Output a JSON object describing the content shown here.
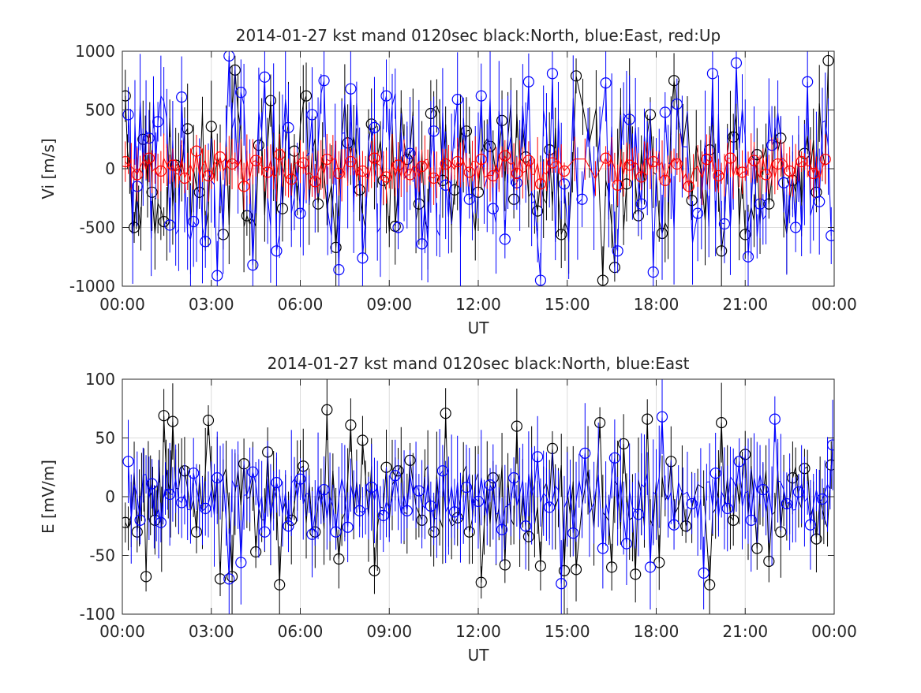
{
  "chart_data": [
    {
      "type": "line",
      "title": "2014-01-27 kst mand 0120sec black:North, blue:East, red:Up",
      "xlabel": "UT",
      "ylabel": "Vi [m/s]",
      "xlim": [
        0,
        24
      ],
      "ylim": [
        -1000,
        1000
      ],
      "xticks": [
        0,
        3,
        6,
        9,
        12,
        15,
        18,
        21,
        24
      ],
      "xtick_labels": [
        "00:00",
        "03:00",
        "06:00",
        "09:00",
        "12:00",
        "15:00",
        "18:00",
        "21:00",
        "00:00"
      ],
      "yticks": [
        -1000,
        -500,
        0,
        500,
        1000
      ],
      "ytick_labels": [
        "-1000",
        "-500",
        "0",
        "500",
        "1000"
      ],
      "grid": true,
      "markers": "circle",
      "series": [
        {
          "name": "North",
          "color": "#000000",
          "spread": 700,
          "errorbar": 300,
          "x": [
            0.1,
            0.4,
            0.7,
            1.0,
            1.4,
            1.8,
            2.2,
            2.6,
            3.0,
            3.4,
            3.8,
            4.2,
            4.6,
            5.0,
            5.4,
            5.8,
            6.2,
            6.6,
            7.2,
            7.6,
            8.0,
            8.4,
            8.8,
            9.2,
            9.6,
            10.0,
            10.4,
            10.8,
            11.2,
            11.6,
            12.0,
            12.4,
            12.8,
            13.2,
            13.6,
            14.0,
            14.4,
            14.8,
            15.3,
            16.2,
            16.6,
            17.0,
            17.4,
            17.8,
            18.2,
            18.6,
            19.2,
            19.8,
            20.2,
            20.6,
            21.0,
            21.4,
            21.8,
            22.2,
            22.6,
            23.0,
            23.4,
            23.8
          ],
          "y": [
            620,
            -500,
            250,
            -200,
            -450,
            30,
            340,
            -200,
            360,
            -560,
            840,
            -400,
            200,
            580,
            -340,
            150,
            620,
            -300,
            -670,
            220,
            -180,
            380,
            -100,
            -490,
            80,
            -300,
            470,
            -100,
            -180,
            320,
            -200,
            190,
            410,
            -260,
            100,
            -360,
            160,
            -560,
            790,
            -950,
            -840,
            -130,
            -400,
            460,
            -550,
            750,
            -270,
            160,
            -700,
            270,
            -560,
            120,
            -300,
            260,
            -100,
            130,
            -200,
            920
          ]
        },
        {
          "name": "East",
          "color": "#0000ff",
          "spread": 800,
          "errorbar": 380,
          "x": [
            0.2,
            0.5,
            0.9,
            1.2,
            1.6,
            2.0,
            2.4,
            2.8,
            3.2,
            3.6,
            4.0,
            4.4,
            4.8,
            5.2,
            5.6,
            6.0,
            6.4,
            6.8,
            7.3,
            7.7,
            8.1,
            8.5,
            8.9,
            9.3,
            9.7,
            10.1,
            10.5,
            10.9,
            11.3,
            11.7,
            12.1,
            12.5,
            12.9,
            13.3,
            13.7,
            14.1,
            14.5,
            14.9,
            15.5,
            16.3,
            16.7,
            17.1,
            17.5,
            17.9,
            18.3,
            18.7,
            19.4,
            19.9,
            20.3,
            20.7,
            21.1,
            21.5,
            21.9,
            22.3,
            22.7,
            23.1,
            23.5,
            23.9
          ],
          "y": [
            460,
            -150,
            260,
            400,
            -480,
            610,
            -450,
            -620,
            -910,
            960,
            650,
            -820,
            780,
            -700,
            350,
            -380,
            460,
            750,
            -860,
            680,
            -760,
            350,
            620,
            -500,
            130,
            -640,
            320,
            -140,
            590,
            -260,
            620,
            -340,
            -600,
            -120,
            740,
            -950,
            810,
            -130,
            -260,
            730,
            -700,
            420,
            -300,
            -880,
            480,
            550,
            -380,
            810,
            -470,
            900,
            -750,
            -300,
            200,
            -120,
            -500,
            740,
            -280,
            -570
          ]
        },
        {
          "name": "Up",
          "color": "#ff0000",
          "spread": 120,
          "errorbar": 180,
          "x": [
            0.1,
            0.5,
            0.9,
            1.3,
            1.7,
            2.1,
            2.5,
            2.9,
            3.3,
            3.7,
            4.1,
            4.5,
            4.9,
            5.3,
            5.7,
            6.1,
            6.5,
            6.9,
            7.3,
            7.7,
            8.1,
            8.5,
            8.9,
            9.3,
            9.7,
            10.1,
            10.5,
            10.9,
            11.3,
            11.7,
            12.1,
            12.5,
            12.9,
            13.3,
            13.7,
            14.1,
            14.5,
            14.9,
            16.3,
            16.7,
            17.1,
            17.5,
            17.9,
            18.3,
            18.7,
            19.1,
            19.7,
            20.1,
            20.5,
            20.9,
            21.3,
            21.7,
            22.1,
            22.5,
            22.9,
            23.3,
            23.7
          ],
          "y": [
            60,
            -50,
            90,
            -20,
            30,
            -80,
            150,
            -60,
            100,
            40,
            -150,
            70,
            -30,
            120,
            -90,
            50,
            -110,
            80,
            -40,
            60,
            -20,
            90,
            -70,
            30,
            -50,
            20,
            -80,
            40,
            60,
            -30,
            80,
            -60,
            110,
            -40,
            70,
            -130,
            50,
            -20,
            90,
            -140,
            30,
            -70,
            60,
            -100,
            40,
            -150,
            80,
            -60,
            90,
            -30,
            70,
            -50,
            40,
            -20,
            60,
            -40,
            80
          ]
        }
      ]
    },
    {
      "type": "line",
      "title": "2014-01-27 kst mand 0120sec black:North, blue:East",
      "xlabel": "UT",
      "ylabel": "E [mV/m]",
      "xlim": [
        0,
        24
      ],
      "ylim": [
        -100,
        100
      ],
      "xticks": [
        0,
        3,
        6,
        9,
        12,
        15,
        18,
        21,
        24
      ],
      "xtick_labels": [
        "00:00",
        "03:00",
        "06:00",
        "09:00",
        "12:00",
        "15:00",
        "18:00",
        "21:00",
        "00:00"
      ],
      "yticks": [
        -100,
        -50,
        0,
        50,
        100
      ],
      "ytick_labels": [
        "-100",
        "-50",
        "0",
        "50",
        "100"
      ],
      "grid": true,
      "markers": "circle",
      "series": [
        {
          "name": "North",
          "color": "#000000",
          "spread": 35,
          "errorbar": 30,
          "x": [
            0.1,
            0.5,
            0.8,
            1.1,
            1.4,
            1.7,
            2.1,
            2.5,
            2.9,
            3.3,
            3.7,
            4.1,
            4.5,
            4.9,
            5.3,
            5.7,
            6.1,
            6.5,
            6.9,
            7.3,
            7.7,
            8.1,
            8.5,
            8.9,
            9.3,
            9.7,
            10.1,
            10.5,
            10.9,
            11.3,
            11.7,
            12.1,
            12.5,
            12.9,
            13.3,
            13.7,
            14.1,
            14.5,
            14.9,
            15.3,
            16.1,
            16.5,
            16.9,
            17.3,
            17.7,
            18.1,
            18.5,
            19.0,
            19.8,
            20.2,
            20.6,
            21.0,
            21.4,
            21.8,
            22.2,
            22.6,
            23.0,
            23.4,
            23.9
          ],
          "y": [
            -22,
            -30,
            -68,
            -20,
            69,
            64,
            22,
            -30,
            65,
            -70,
            -68,
            28,
            -47,
            38,
            -75,
            -20,
            26,
            -30,
            74,
            -53,
            61,
            48,
            -63,
            25,
            22,
            31,
            -20,
            -30,
            71,
            -18,
            -30,
            -73,
            16,
            -58,
            60,
            -34,
            -59,
            41,
            -63,
            -62,
            63,
            -60,
            45,
            -66,
            66,
            -56,
            30,
            -25,
            -75,
            63,
            -20,
            36,
            -44,
            -55,
            -30,
            16,
            24,
            -36,
            27
          ]
        },
        {
          "name": "East",
          "color": "#0000ff",
          "spread": 25,
          "errorbar": 35,
          "x": [
            0.2,
            0.6,
            1.0,
            1.3,
            1.6,
            2.0,
            2.4,
            2.8,
            3.2,
            3.6,
            4.0,
            4.4,
            4.8,
            5.2,
            5.6,
            6.0,
            6.4,
            6.8,
            7.2,
            7.6,
            8.0,
            8.4,
            8.8,
            9.2,
            9.6,
            10.0,
            10.4,
            10.8,
            11.2,
            11.6,
            12.0,
            12.4,
            12.8,
            13.2,
            13.6,
            14.0,
            14.4,
            14.8,
            15.2,
            15.6,
            16.2,
            16.6,
            17.0,
            17.4,
            17.8,
            18.2,
            18.6,
            19.2,
            19.6,
            20.0,
            20.4,
            20.8,
            21.2,
            21.6,
            22.0,
            22.4,
            22.8,
            23.2,
            23.6,
            23.95
          ],
          "y": [
            30,
            -20,
            11,
            -22,
            2,
            -5,
            20,
            -10,
            16,
            -70,
            -56,
            21,
            -30,
            12,
            -25,
            15,
            -32,
            6,
            -30,
            -26,
            -12,
            8,
            -16,
            18,
            -12,
            5,
            -8,
            22,
            -13,
            8,
            -4,
            10,
            -28,
            16,
            -25,
            34,
            -9,
            -74,
            -31,
            37,
            -44,
            33,
            -40,
            -15,
            -60,
            68,
            -24,
            -6,
            -65,
            20,
            -10,
            30,
            -20,
            6,
            66,
            -6,
            4,
            -24,
            -2,
            44
          ]
        }
      ]
    }
  ]
}
